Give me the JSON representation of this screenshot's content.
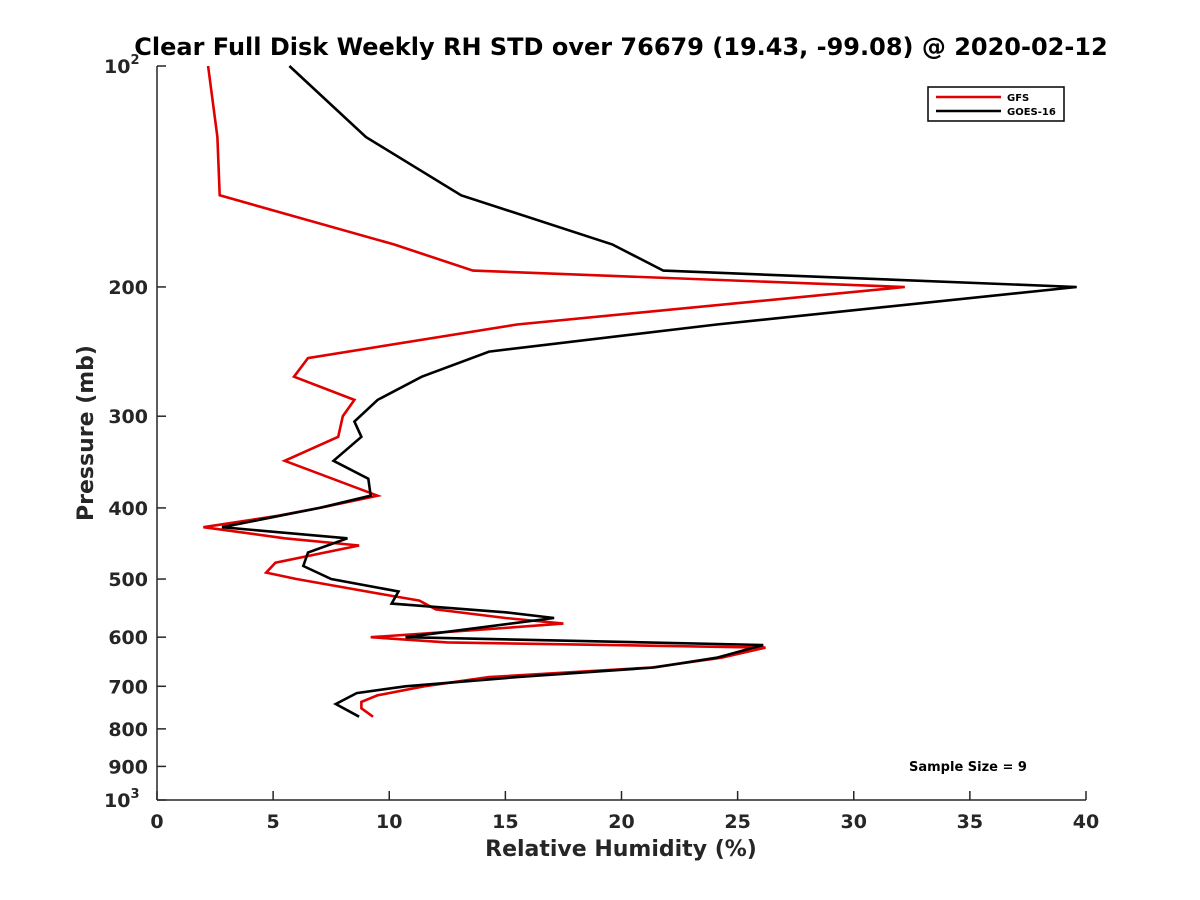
{
  "chart_data": {
    "type": "line",
    "title": "Clear Full Disk Weekly RH STD over 76679 (19.43, -99.08) @ 2020-02-12",
    "xlabel": "Relative Humidity (%)",
    "ylabel": "Pressure (mb)",
    "xlim": [
      0,
      40
    ],
    "ylim": [
      100,
      1000
    ],
    "yscale": "log",
    "yreversed": true,
    "grid": false,
    "legend_position": "top-right",
    "x_ticks": [
      {
        "value": 0,
        "label": "0"
      },
      {
        "value": 5,
        "label": "5"
      },
      {
        "value": 10,
        "label": "10"
      },
      {
        "value": 15,
        "label": "15"
      },
      {
        "value": 20,
        "label": "20"
      },
      {
        "value": 25,
        "label": "25"
      },
      {
        "value": 30,
        "label": "30"
      },
      {
        "value": 35,
        "label": "35"
      },
      {
        "value": 40,
        "label": "40"
      }
    ],
    "y_ticks": [
      {
        "value": 100,
        "label": "10",
        "sup": "2"
      },
      {
        "value": 200,
        "label": "200",
        "sup": ""
      },
      {
        "value": 300,
        "label": "300",
        "sup": ""
      },
      {
        "value": 400,
        "label": "400",
        "sup": ""
      },
      {
        "value": 500,
        "label": "500",
        "sup": ""
      },
      {
        "value": 600,
        "label": "600",
        "sup": ""
      },
      {
        "value": 700,
        "label": "700",
        "sup": ""
      },
      {
        "value": 800,
        "label": "800",
        "sup": ""
      },
      {
        "value": 900,
        "label": "900",
        "sup": ""
      },
      {
        "value": 1000,
        "label": "10",
        "sup": "3"
      }
    ],
    "series": [
      {
        "name": "GFS",
        "color": "#e00000",
        "points": [
          [
            2.2,
            100
          ],
          [
            2.6,
            125
          ],
          [
            2.7,
            150
          ],
          [
            10.2,
            175
          ],
          [
            13.6,
            190
          ],
          [
            32.2,
            200
          ],
          [
            15.5,
            225
          ],
          [
            6.5,
            250
          ],
          [
            5.9,
            265
          ],
          [
            8.5,
            285
          ],
          [
            8.0,
            300
          ],
          [
            7.8,
            320
          ],
          [
            5.5,
            345
          ],
          [
            9.5,
            385
          ],
          [
            7.0,
            400
          ],
          [
            5.2,
            410
          ],
          [
            2.0,
            425
          ],
          [
            5.5,
            440
          ],
          [
            8.7,
            450
          ],
          [
            5.1,
            475
          ],
          [
            4.7,
            490
          ],
          [
            6.0,
            500
          ],
          [
            9.8,
            525
          ],
          [
            11.3,
            535
          ],
          [
            12.0,
            550
          ],
          [
            15.0,
            565
          ],
          [
            17.5,
            575
          ],
          [
            14.3,
            585
          ],
          [
            9.2,
            600
          ],
          [
            12.5,
            610
          ],
          [
            26.2,
            620
          ],
          [
            24.3,
            640
          ],
          [
            21.3,
            660
          ],
          [
            14.3,
            680
          ],
          [
            11.5,
            700
          ],
          [
            9.5,
            720
          ],
          [
            8.8,
            735
          ],
          [
            8.8,
            750
          ],
          [
            9.3,
            770
          ]
        ]
      },
      {
        "name": "GOES-16",
        "color": "#000000",
        "points": [
          [
            5.7,
            100
          ],
          [
            9.0,
            125
          ],
          [
            13.1,
            150
          ],
          [
            19.6,
            175
          ],
          [
            21.8,
            190
          ],
          [
            39.6,
            200
          ],
          [
            24.1,
            225
          ],
          [
            14.3,
            245
          ],
          [
            11.4,
            265
          ],
          [
            9.5,
            285
          ],
          [
            8.5,
            305
          ],
          [
            8.8,
            320
          ],
          [
            7.6,
            345
          ],
          [
            9.1,
            365
          ],
          [
            9.2,
            385
          ],
          [
            7.0,
            400
          ],
          [
            2.8,
            425
          ],
          [
            8.2,
            440
          ],
          [
            6.5,
            460
          ],
          [
            6.3,
            480
          ],
          [
            7.5,
            500
          ],
          [
            10.4,
            520
          ],
          [
            10.1,
            540
          ],
          [
            15.0,
            555
          ],
          [
            17.1,
            565
          ],
          [
            10.7,
            600
          ],
          [
            26.1,
            615
          ],
          [
            24.1,
            640
          ],
          [
            21.4,
            660
          ],
          [
            15.5,
            680
          ],
          [
            10.7,
            700
          ],
          [
            8.6,
            715
          ],
          [
            7.7,
            740
          ],
          [
            8.7,
            770
          ]
        ]
      }
    ],
    "annotation": "Sample Size = 9"
  }
}
